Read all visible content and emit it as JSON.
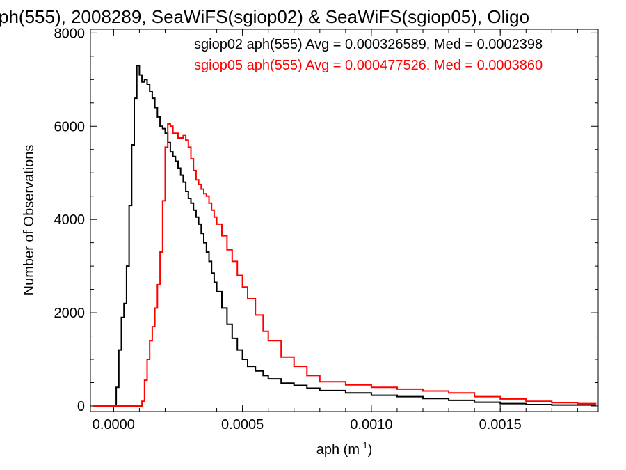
{
  "chart_data": {
    "type": "line",
    "title": "ph(555), 2008289, SeaWiFS(sgiop02) & SeaWiFS(sgiop05), Oligo",
    "xlabel_main": "aph (m",
    "xlabel_exp": "-1",
    "xlabel_close": ")",
    "ylabel": "Number of Observations",
    "xlim": [
      -9e-05,
      0.00188
    ],
    "ylim": [
      -120,
      8080
    ],
    "xticks": [
      {
        "value": 0.0,
        "label": "0.0000"
      },
      {
        "value": 0.0005,
        "label": "0.0005"
      },
      {
        "value": 0.001,
        "label": "0.0010"
      },
      {
        "value": 0.0015,
        "label": "0.0015"
      }
    ],
    "yticks": [
      {
        "value": 0,
        "label": "0"
      },
      {
        "value": 2000,
        "label": "2000"
      },
      {
        "value": 4000,
        "label": "4000"
      },
      {
        "value": 6000,
        "label": "6000"
      },
      {
        "value": 8000,
        "label": "8000"
      }
    ],
    "annotations": [
      {
        "text": "sgiop02 aph(555) Avg = 0.000326589, Med = 0.0002398",
        "color": "#000000"
      },
      {
        "text": "sgiop05 aph(555) Avg = 0.000477526, Med = 0.0003860",
        "color": "#ff0000"
      }
    ],
    "series": [
      {
        "color": "#000000",
        "points": [
          [
            -8e-05,
            0
          ],
          [
            -1e-05,
            0
          ],
          [
            0.0,
            10
          ],
          [
            1e-05,
            400
          ],
          [
            2e-05,
            1200
          ],
          [
            3e-05,
            1900
          ],
          [
            4e-05,
            2200
          ],
          [
            5e-05,
            3000
          ],
          [
            6e-05,
            4300
          ],
          [
            7e-05,
            5600
          ],
          [
            8e-05,
            6600
          ],
          [
            9e-05,
            7300
          ],
          [
            0.0001,
            7100
          ],
          [
            0.00011,
            6950
          ],
          [
            0.00012,
            7000
          ],
          [
            0.00013,
            6900
          ],
          [
            0.00014,
            6750
          ],
          [
            0.00015,
            6600
          ],
          [
            0.00016,
            6400
          ],
          [
            0.00017,
            6200
          ],
          [
            0.00018,
            6000
          ],
          [
            0.00019,
            5950
          ],
          [
            0.0002,
            5850
          ],
          [
            0.00021,
            5650
          ],
          [
            0.00022,
            5450
          ],
          [
            0.00023,
            5350
          ],
          [
            0.00024,
            5250
          ],
          [
            0.00025,
            5100
          ],
          [
            0.00026,
            4950
          ],
          [
            0.00027,
            4800
          ],
          [
            0.00028,
            4600
          ],
          [
            0.00029,
            4450
          ],
          [
            0.0003,
            4350
          ],
          [
            0.00031,
            4200
          ],
          [
            0.00032,
            4050
          ],
          [
            0.00033,
            3900
          ],
          [
            0.00034,
            3700
          ],
          [
            0.00035,
            3500
          ],
          [
            0.00036,
            3300
          ],
          [
            0.00037,
            3100
          ],
          [
            0.00038,
            2850
          ],
          [
            0.00039,
            2650
          ],
          [
            0.0004,
            2450
          ],
          [
            0.00042,
            2100
          ],
          [
            0.00044,
            1750
          ],
          [
            0.00046,
            1450
          ],
          [
            0.00048,
            1200
          ],
          [
            0.0005,
            1000
          ],
          [
            0.00052,
            850
          ],
          [
            0.00055,
            750
          ],
          [
            0.00058,
            650
          ],
          [
            0.0006,
            580
          ],
          [
            0.00065,
            490
          ],
          [
            0.0007,
            440
          ],
          [
            0.00075,
            380
          ],
          [
            0.0008,
            330
          ],
          [
            0.0009,
            280
          ],
          [
            0.001,
            230
          ],
          [
            0.0011,
            200
          ],
          [
            0.0012,
            160
          ],
          [
            0.0013,
            120
          ],
          [
            0.0014,
            80
          ],
          [
            0.0015,
            50
          ],
          [
            0.0016,
            30
          ],
          [
            0.0017,
            20
          ],
          [
            0.00187,
            10
          ]
        ]
      },
      {
        "color": "#ff0000",
        "points": [
          [
            -8e-05,
            0
          ],
          [
            0.0001,
            0
          ],
          [
            0.00011,
            100
          ],
          [
            0.00012,
            550
          ],
          [
            0.00013,
            1000
          ],
          [
            0.00014,
            1400
          ],
          [
            0.00015,
            1700
          ],
          [
            0.00016,
            2100
          ],
          [
            0.00017,
            2600
          ],
          [
            0.00018,
            3300
          ],
          [
            0.00019,
            4400
          ],
          [
            0.0002,
            5550
          ],
          [
            0.00021,
            6050
          ],
          [
            0.00022,
            6000
          ],
          [
            0.00023,
            5850
          ],
          [
            0.00024,
            5850
          ],
          [
            0.00025,
            5750
          ],
          [
            0.00026,
            5750
          ],
          [
            0.00027,
            5800
          ],
          [
            0.00028,
            5700
          ],
          [
            0.00029,
            5550
          ],
          [
            0.0003,
            5300
          ],
          [
            0.00031,
            5050
          ],
          [
            0.00032,
            4850
          ],
          [
            0.00033,
            4750
          ],
          [
            0.00034,
            4650
          ],
          [
            0.00035,
            4550
          ],
          [
            0.00036,
            4500
          ],
          [
            0.00037,
            4350
          ],
          [
            0.00038,
            4200
          ],
          [
            0.00039,
            4050
          ],
          [
            0.0004,
            3900
          ],
          [
            0.00042,
            3650
          ],
          [
            0.00044,
            3350
          ],
          [
            0.00046,
            3100
          ],
          [
            0.00048,
            2800
          ],
          [
            0.0005,
            2550
          ],
          [
            0.00052,
            2300
          ],
          [
            0.00055,
            1950
          ],
          [
            0.00058,
            1600
          ],
          [
            0.0006,
            1400
          ],
          [
            0.00065,
            1050
          ],
          [
            0.0007,
            850
          ],
          [
            0.00075,
            650
          ],
          [
            0.0008,
            520
          ],
          [
            0.0009,
            450
          ],
          [
            0.001,
            400
          ],
          [
            0.0011,
            360
          ],
          [
            0.0012,
            320
          ],
          [
            0.0013,
            280
          ],
          [
            0.0014,
            200
          ],
          [
            0.0015,
            150
          ],
          [
            0.0016,
            100
          ],
          [
            0.0017,
            70
          ],
          [
            0.0018,
            50
          ],
          [
            0.00187,
            40
          ]
        ]
      }
    ]
  }
}
